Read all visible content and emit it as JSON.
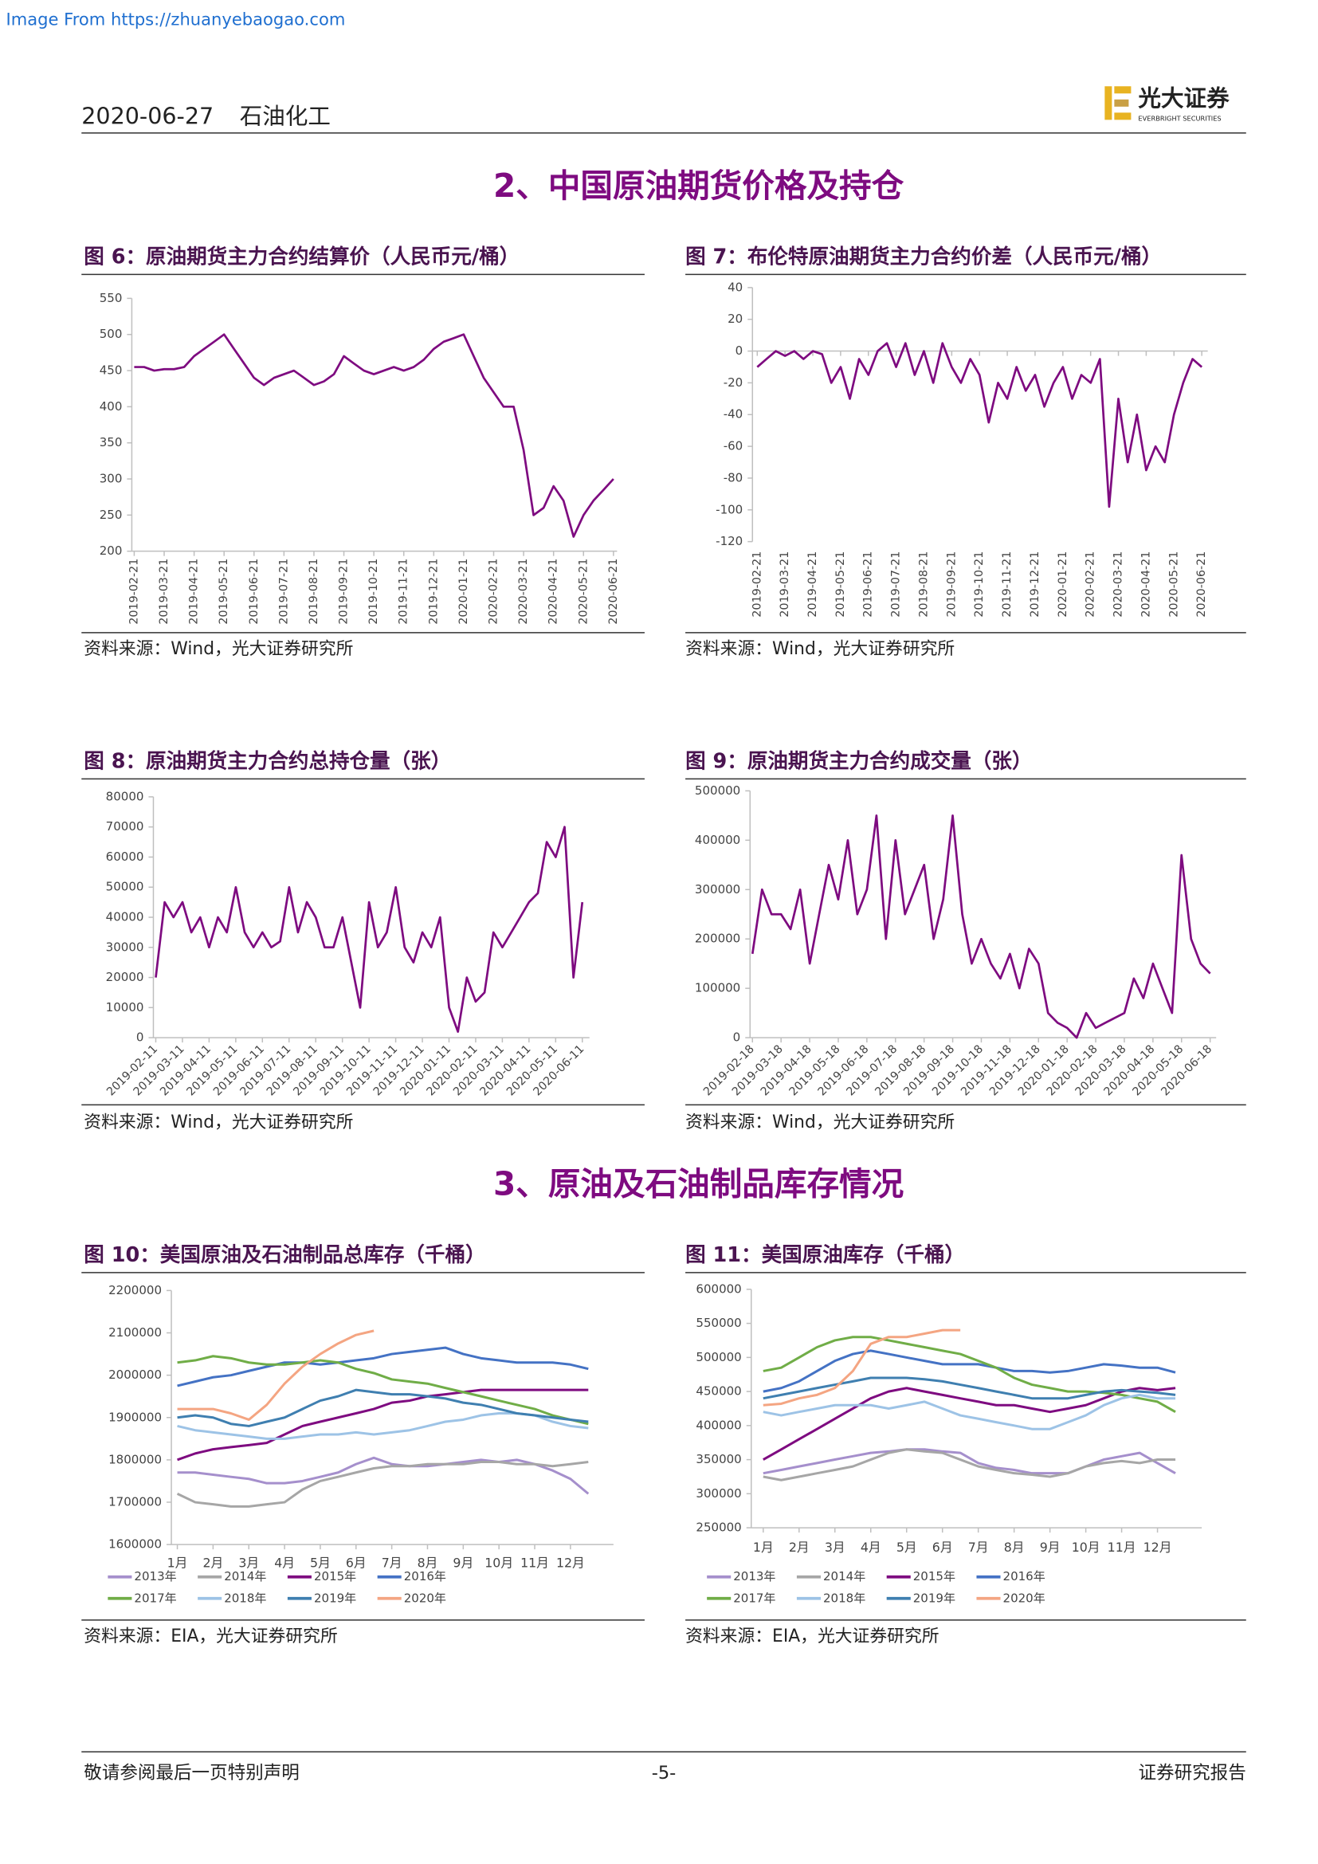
{
  "header": {
    "source_note": "Image From https://zhuanyebaogao.com",
    "date": "2020-06-27",
    "sector": "石油化工",
    "logo_cn": "光大证券",
    "logo_en": "EVERBRIGHT SECURITIES"
  },
  "sections": [
    "2、中国原油期货价格及持仓",
    "3、原油及石油制品库存情况"
  ],
  "footer": {
    "left": "敬请参阅最后一页特别声明",
    "page": "-5-",
    "right": "证券研究报告"
  },
  "chart_data": [
    {
      "type": "line",
      "title": "图 6：原油期货主力合约结算价（人民币元/桶）",
      "source": "资料来源：Wind，光大证券研究所",
      "color": "#7e0b80",
      "categories": [
        "2019-02-21",
        null,
        null,
        "2019-03-21",
        null,
        null,
        "2019-04-21",
        null,
        null,
        "2019-05-21",
        null,
        null,
        "2019-06-21",
        null,
        null,
        "2019-07-21",
        null,
        null,
        "2019-08-21",
        null,
        null,
        "2019-09-21",
        null,
        null,
        "2019-10-21",
        null,
        null,
        "2019-11-21",
        null,
        null,
        "2019-12-21",
        null,
        null,
        "2020-01-21",
        null,
        null,
        "2020-02-21",
        null,
        null,
        "2020-03-21",
        null,
        null,
        "2020-04-21",
        null,
        null,
        "2020-05-21",
        null,
        null,
        "2020-06-21"
      ],
      "values": [
        455,
        455,
        450,
        452,
        452,
        455,
        470,
        480,
        490,
        500,
        480,
        460,
        440,
        430,
        440,
        445,
        450,
        440,
        430,
        435,
        445,
        470,
        460,
        450,
        445,
        450,
        455,
        450,
        455,
        465,
        480,
        490,
        495,
        500,
        470,
        440,
        420,
        400,
        400,
        340,
        250,
        260,
        290,
        270,
        220,
        250,
        270,
        285,
        300
      ],
      "ylim": [
        200,
        550
      ],
      "yticks": [
        200,
        250,
        300,
        350,
        400,
        450,
        500,
        550
      ]
    },
    {
      "type": "line",
      "title": "图 7：布伦特原油期货主力合约价差（人民币元/桶）",
      "source": "资料来源：Wind，光大证券研究所",
      "color": "#7e0b80",
      "categories": [
        "2019-02-21",
        null,
        null,
        "2019-03-21",
        null,
        null,
        "2019-04-21",
        null,
        null,
        "2019-05-21",
        null,
        null,
        "2019-06-21",
        null,
        null,
        "2019-07-21",
        null,
        null,
        "2019-08-21",
        null,
        null,
        "2019-09-21",
        null,
        null,
        "2019-10-21",
        null,
        null,
        "2019-11-21",
        null,
        null,
        "2019-12-21",
        null,
        null,
        "2020-01-21",
        null,
        null,
        "2020-02-21",
        null,
        null,
        "2020-03-21",
        null,
        null,
        "2020-04-21",
        null,
        null,
        "2020-05-21",
        null,
        null,
        "2020-06-21"
      ],
      "values": [
        -10,
        -5,
        0,
        -3,
        0,
        -5,
        0,
        -2,
        -20,
        -10,
        -30,
        -5,
        -15,
        0,
        5,
        -10,
        5,
        -15,
        0,
        -20,
        5,
        -10,
        -20,
        -5,
        -15,
        -45,
        -20,
        -30,
        -10,
        -25,
        -15,
        -35,
        -20,
        -10,
        -30,
        -15,
        -20,
        -5,
        -98,
        -30,
        -70,
        -40,
        -75,
        -60,
        -70,
        -40,
        -20,
        -5,
        -10
      ],
      "ylim": [
        -120,
        40
      ],
      "yticks": [
        -120,
        -100,
        -80,
        -60,
        -40,
        -20,
        0,
        20,
        40
      ]
    },
    {
      "type": "line",
      "title": "图 8：原油期货主力合约总持仓量（张）",
      "source": "资料来源：Wind，光大证券研究所",
      "color": "#7e0b80",
      "categories": [
        "2019-02-11",
        null,
        null,
        "2019-03-11",
        null,
        null,
        "2019-04-11",
        null,
        null,
        "2019-05-11",
        null,
        null,
        "2019-06-11",
        null,
        null,
        "2019-07-11",
        null,
        null,
        "2019-08-11",
        null,
        null,
        "2019-09-11",
        null,
        null,
        "2019-10-11",
        null,
        null,
        "2019-11-11",
        null,
        null,
        "2019-12-11",
        null,
        null,
        "2020-01-11",
        null,
        null,
        "2020-02-11",
        null,
        null,
        "2020-03-11",
        null,
        null,
        "2020-04-11",
        null,
        null,
        "2020-05-11",
        null,
        null,
        "2020-06-11"
      ],
      "values": [
        20000,
        45000,
        40000,
        45000,
        35000,
        40000,
        30000,
        40000,
        35000,
        50000,
        35000,
        30000,
        35000,
        30000,
        32000,
        50000,
        35000,
        45000,
        40000,
        30000,
        30000,
        40000,
        25000,
        10000,
        45000,
        30000,
        35000,
        50000,
        30000,
        25000,
        35000,
        30000,
        40000,
        10000,
        2000,
        20000,
        12000,
        15000,
        35000,
        30000,
        35000,
        40000,
        45000,
        48000,
        65000,
        60000,
        70000,
        20000,
        45000
      ],
      "ylim": [
        0,
        80000
      ],
      "yticks": [
        0,
        10000,
        20000,
        30000,
        40000,
        50000,
        60000,
        70000,
        80000
      ]
    },
    {
      "type": "line",
      "title": "图 9：原油期货主力合约成交量（张）",
      "source": "资料来源：Wind，光大证券研究所",
      "color": "#7e0b80",
      "categories": [
        "2019-02-18",
        null,
        null,
        "2019-03-18",
        null,
        null,
        "2019-04-18",
        null,
        null,
        "2019-05-18",
        null,
        null,
        "2019-06-18",
        null,
        null,
        "2019-07-18",
        null,
        null,
        "2019-08-18",
        null,
        null,
        "2019-09-18",
        null,
        null,
        "2019-10-18",
        null,
        null,
        "2019-11-18",
        null,
        null,
        "2019-12-18",
        null,
        null,
        "2020-01-18",
        null,
        null,
        "2020-02-18",
        null,
        null,
        "2020-03-18",
        null,
        null,
        "2020-04-18",
        null,
        null,
        "2020-05-18",
        null,
        null,
        "2020-06-18"
      ],
      "values": [
        170000,
        300000,
        250000,
        250000,
        220000,
        300000,
        150000,
        250000,
        350000,
        280000,
        400000,
        250000,
        300000,
        450000,
        200000,
        400000,
        250000,
        300000,
        350000,
        200000,
        280000,
        450000,
        250000,
        150000,
        200000,
        150000,
        120000,
        170000,
        100000,
        180000,
        150000,
        50000,
        30000,
        20000,
        0,
        50000,
        20000,
        30000,
        40000,
        50000,
        120000,
        80000,
        150000,
        100000,
        50000,
        370000,
        200000,
        150000,
        130000
      ],
      "ylim": [
        0,
        500000
      ],
      "yticks": [
        0,
        100000,
        200000,
        300000,
        400000,
        500000
      ]
    },
    {
      "type": "line",
      "title": "图 10：美国原油及石油制品总库存（千桶）",
      "source": "资料来源：EIA，光大证券研究所",
      "legend": "bottom",
      "categories": [
        "1月",
        null,
        "2月",
        null,
        "3月",
        null,
        "4月",
        null,
        "5月",
        null,
        "6月",
        null,
        "7月",
        null,
        "8月",
        null,
        "9月",
        null,
        "10月",
        null,
        "11月",
        null,
        "12月",
        null
      ],
      "series": [
        {
          "name": "2013年",
          "color": "#a58fcc",
          "values": [
            1770000,
            1770000,
            1765000,
            1760000,
            1755000,
            1745000,
            1745000,
            1750000,
            1760000,
            1770000,
            1790000,
            1805000,
            1790000,
            1785000,
            1785000,
            1790000,
            1795000,
            1800000,
            1795000,
            1800000,
            1790000,
            1775000,
            1755000,
            1720000
          ]
        },
        {
          "name": "2014年",
          "color": "#a6a6a6",
          "values": [
            1720000,
            1700000,
            1695000,
            1690000,
            1690000,
            1695000,
            1700000,
            1730000,
            1750000,
            1760000,
            1770000,
            1780000,
            1785000,
            1785000,
            1790000,
            1790000,
            1790000,
            1795000,
            1795000,
            1790000,
            1790000,
            1785000,
            1790000,
            1795000
          ]
        },
        {
          "name": "2015年",
          "color": "#7e0b80",
          "values": [
            1800000,
            1815000,
            1825000,
            1830000,
            1835000,
            1840000,
            1860000,
            1880000,
            1890000,
            1900000,
            1910000,
            1920000,
            1935000,
            1940000,
            1950000,
            1955000,
            1960000,
            1965000,
            1965000,
            1965000,
            1965000,
            1965000,
            1965000,
            1965000
          ]
        },
        {
          "name": "2016年",
          "color": "#4472c4",
          "values": [
            1975000,
            1985000,
            1995000,
            2000000,
            2010000,
            2020000,
            2030000,
            2030000,
            2025000,
            2030000,
            2035000,
            2040000,
            2050000,
            2055000,
            2060000,
            2065000,
            2050000,
            2040000,
            2035000,
            2030000,
            2030000,
            2030000,
            2025000,
            2015000
          ]
        },
        {
          "name": "2017年",
          "color": "#70ad47",
          "values": [
            2030000,
            2035000,
            2045000,
            2040000,
            2030000,
            2025000,
            2025000,
            2030000,
            2035000,
            2030000,
            2015000,
            2005000,
            1990000,
            1985000,
            1980000,
            1970000,
            1960000,
            1950000,
            1940000,
            1930000,
            1920000,
            1905000,
            1895000,
            1885000
          ]
        },
        {
          "name": "2018年",
          "color": "#9dc3e6",
          "values": [
            1880000,
            1870000,
            1865000,
            1860000,
            1855000,
            1850000,
            1850000,
            1855000,
            1860000,
            1860000,
            1865000,
            1860000,
            1865000,
            1870000,
            1880000,
            1890000,
            1895000,
            1905000,
            1910000,
            1910000,
            1905000,
            1890000,
            1880000,
            1875000
          ]
        },
        {
          "name": "2019年",
          "color": "#3f7fb0",
          "values": [
            1900000,
            1905000,
            1900000,
            1885000,
            1880000,
            1890000,
            1900000,
            1920000,
            1940000,
            1950000,
            1965000,
            1960000,
            1955000,
            1955000,
            1950000,
            1945000,
            1935000,
            1930000,
            1920000,
            1910000,
            1905000,
            1900000,
            1895000,
            1890000
          ]
        },
        {
          "name": "2020年",
          "color": "#f4a582",
          "values": [
            1920000,
            1920000,
            1920000,
            1910000,
            1895000,
            1930000,
            1980000,
            2020000,
            2050000,
            2075000,
            2095000,
            2105000,
            null,
            null,
            null,
            null,
            null,
            null,
            null,
            null,
            null,
            null,
            null,
            null
          ]
        }
      ],
      "ylim": [
        1600000,
        2200000
      ],
      "yticks": [
        1600000,
        1700000,
        1800000,
        1900000,
        2000000,
        2100000,
        2200000
      ]
    },
    {
      "type": "line",
      "title": "图 11：美国原油库存（千桶）",
      "source": "资料来源：EIA，光大证券研究所",
      "legend": "bottom",
      "categories": [
        "1月",
        null,
        "2月",
        null,
        "3月",
        null,
        "4月",
        null,
        "5月",
        null,
        "6月",
        null,
        "7月",
        null,
        "8月",
        null,
        "9月",
        null,
        "10月",
        null,
        "11月",
        null,
        "12月",
        null
      ],
      "series": [
        {
          "name": "2013年",
          "color": "#a58fcc",
          "values": [
            330000,
            335000,
            340000,
            345000,
            350000,
            355000,
            360000,
            362000,
            365000,
            365000,
            362000,
            360000,
            345000,
            338000,
            335000,
            330000,
            330000,
            330000,
            340000,
            350000,
            355000,
            360000,
            345000,
            330000
          ]
        },
        {
          "name": "2014年",
          "color": "#a6a6a6",
          "values": [
            325000,
            320000,
            325000,
            330000,
            335000,
            340000,
            350000,
            360000,
            365000,
            362000,
            360000,
            350000,
            340000,
            335000,
            330000,
            328000,
            325000,
            330000,
            340000,
            345000,
            348000,
            345000,
            350000,
            350000
          ]
        },
        {
          "name": "2015年",
          "color": "#7e0b80",
          "values": [
            350000,
            365000,
            380000,
            395000,
            410000,
            425000,
            440000,
            450000,
            455000,
            450000,
            445000,
            440000,
            435000,
            430000,
            430000,
            425000,
            420000,
            425000,
            430000,
            440000,
            450000,
            455000,
            452000,
            455000
          ]
        },
        {
          "name": "2016年",
          "color": "#4472c4",
          "values": [
            450000,
            455000,
            465000,
            480000,
            495000,
            505000,
            510000,
            505000,
            500000,
            495000,
            490000,
            490000,
            490000,
            485000,
            480000,
            480000,
            478000,
            480000,
            485000,
            490000,
            488000,
            485000,
            485000,
            478000
          ]
        },
        {
          "name": "2017年",
          "color": "#70ad47",
          "values": [
            480000,
            485000,
            500000,
            515000,
            525000,
            530000,
            530000,
            525000,
            520000,
            515000,
            510000,
            505000,
            495000,
            485000,
            470000,
            460000,
            455000,
            450000,
            450000,
            448000,
            445000,
            440000,
            435000,
            420000
          ]
        },
        {
          "name": "2018年",
          "color": "#9dc3e6",
          "values": [
            420000,
            415000,
            420000,
            425000,
            430000,
            430000,
            430000,
            425000,
            430000,
            435000,
            425000,
            415000,
            410000,
            405000,
            400000,
            395000,
            395000,
            405000,
            415000,
            430000,
            440000,
            445000,
            440000,
            440000
          ]
        },
        {
          "name": "2019年",
          "color": "#3f7fb0",
          "values": [
            440000,
            445000,
            450000,
            455000,
            460000,
            465000,
            470000,
            470000,
            470000,
            468000,
            465000,
            460000,
            455000,
            450000,
            445000,
            440000,
            440000,
            440000,
            445000,
            450000,
            452000,
            450000,
            448000,
            445000
          ]
        },
        {
          "name": "2020年",
          "color": "#f4a582",
          "values": [
            430000,
            432000,
            440000,
            445000,
            455000,
            480000,
            520000,
            530000,
            530000,
            535000,
            540000,
            540000,
            null,
            null,
            null,
            null,
            null,
            null,
            null,
            null,
            null,
            null,
            null,
            null
          ]
        }
      ],
      "ylim": [
        250000,
        600000
      ],
      "yticks": [
        250000,
        300000,
        350000,
        400000,
        450000,
        500000,
        550000,
        600000
      ]
    }
  ]
}
